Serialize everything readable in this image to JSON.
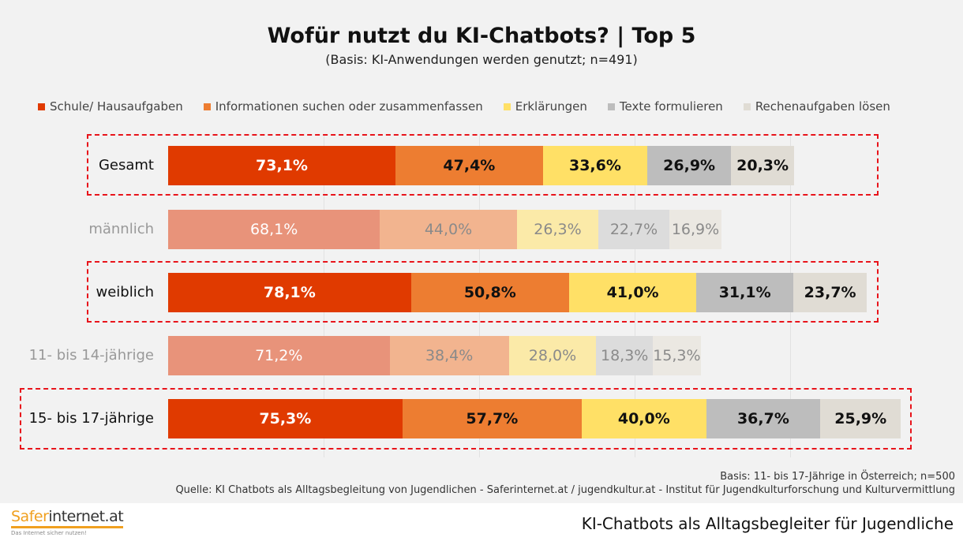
{
  "chart_data": {
    "type": "bar",
    "orientation": "horizontal",
    "stacked": true,
    "title": "Wofür nutzt du KI-Chatbots? | Top 5",
    "subtitle": "(Basis: KI-Anwendungen werden genutzt; n=491)",
    "legend_position": "top",
    "grid": true,
    "categories": [
      "Gesamt",
      "männlich",
      "weiblich",
      "11- bis 14-jährige",
      "15- bis 17-jährige"
    ],
    "highlighted": [
      true,
      false,
      true,
      false,
      true
    ],
    "series": [
      {
        "name": "Schule/ Hausaufgaben",
        "color": "#e03a00",
        "faded_color": "#e8937a",
        "values": [
          73.1,
          68.1,
          78.1,
          71.2,
          75.3
        ],
        "labels": [
          "73,1%",
          "68,1%",
          "78,1%",
          "71,2%",
          "75,3%"
        ]
      },
      {
        "name": "Informationen suchen oder zusammenfassen",
        "color": "#ed7d31",
        "faded_color": "#f2b48f",
        "values": [
          47.4,
          44.0,
          50.8,
          38.4,
          57.7
        ],
        "labels": [
          "47,4%",
          "44,0%",
          "50,8%",
          "38,4%",
          "57,7%"
        ]
      },
      {
        "name": "Erklärungen",
        "color": "#ffe066",
        "faded_color": "#fbeaa8",
        "values": [
          33.6,
          26.3,
          41.0,
          28.0,
          40.0
        ],
        "labels": [
          "33,6%",
          "26,3%",
          "41,0%",
          "28,0%",
          "40,0%"
        ]
      },
      {
        "name": "Texte formulieren",
        "color": "#bdbdbd",
        "faded_color": "#dcdcdc",
        "values": [
          26.9,
          22.7,
          31.1,
          18.3,
          36.7
        ],
        "labels": [
          "26,9%",
          "22,7%",
          "31,1%",
          "18,3%",
          "36,7%"
        ]
      },
      {
        "name": "Rechenaufgaben lösen",
        "color": "#e0dcd4",
        "faded_color": "#ebe8e2",
        "values": [
          20.3,
          16.9,
          23.7,
          15.3,
          25.9
        ],
        "labels": [
          "20,3%",
          "16,9%",
          "23,7%",
          "15,3%",
          "25,9%"
        ]
      }
    ]
  },
  "footer": {
    "basis": "Basis: 11- bis 17-Jährige in Österreich; n=500",
    "source": "Quelle: KI Chatbots als Alltagsbegleitung von Jugendlichen - Saferinternet.at / jugendkultur.at - Institut für Jugendkulturforschung und Kulturvermittlung",
    "logo_main": "Safer",
    "logo_rest": "internet.at",
    "logo_tagline": "Das Internet sicher nutzen!",
    "bottom_title": "KI-Chatbots als Alltagsbegleiter für Jugendliche"
  }
}
